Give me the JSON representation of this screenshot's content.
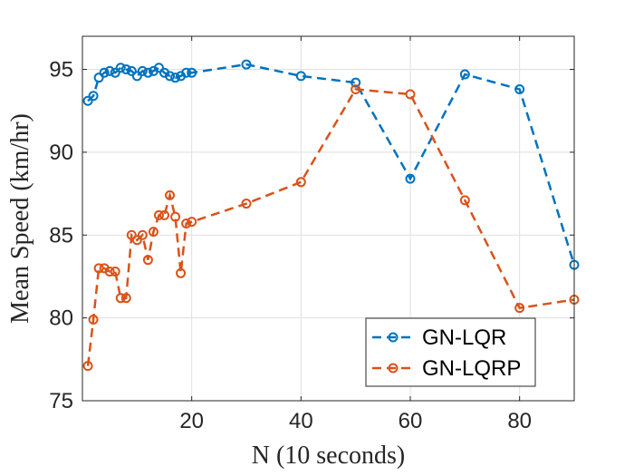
{
  "chart_data": {
    "type": "line",
    "title": "",
    "xlabel": "N (10 seconds)",
    "ylabel": "Mean Speed (km/hr)",
    "xlim": [
      0,
      90
    ],
    "ylim": [
      75,
      97
    ],
    "xticks": [
      20,
      40,
      60,
      80
    ],
    "yticks": [
      75,
      80,
      85,
      90,
      95
    ],
    "xtick_labels": [
      "20",
      "40",
      "60",
      "80"
    ],
    "ytick_labels": [
      "75",
      "80",
      "85",
      "90",
      "95"
    ],
    "grid": true,
    "legend_position": "bottom-right",
    "series": [
      {
        "name": "GN-LQR",
        "color": "#0072BD",
        "x": [
          1,
          2,
          3,
          4,
          5,
          6,
          7,
          8,
          9,
          10,
          11,
          12,
          13,
          14,
          15,
          16,
          17,
          18,
          19,
          20,
          30,
          40,
          50,
          60,
          70,
          80,
          90
        ],
        "y": [
          93.1,
          93.4,
          94.5,
          94.8,
          94.9,
          94.8,
          95.1,
          95.0,
          94.9,
          94.6,
          94.9,
          94.8,
          94.9,
          95.1,
          94.8,
          94.6,
          94.5,
          94.6,
          94.8,
          94.8,
          95.3,
          94.6,
          94.2,
          88.4,
          94.7,
          93.8,
          83.2
        ]
      },
      {
        "name": "GN-LQRP",
        "color": "#D95319",
        "x": [
          1,
          2,
          3,
          4,
          5,
          6,
          7,
          8,
          9,
          10,
          11,
          12,
          13,
          14,
          15,
          16,
          17,
          18,
          19,
          20,
          30,
          40,
          50,
          60,
          70,
          80,
          90
        ],
        "y": [
          77.1,
          79.9,
          83.0,
          83.0,
          82.8,
          82.8,
          81.2,
          81.2,
          85.0,
          84.7,
          85.0,
          83.5,
          85.2,
          86.2,
          86.2,
          87.4,
          86.1,
          82.7,
          85.7,
          85.8,
          86.9,
          88.2,
          93.8,
          93.5,
          87.1,
          80.6,
          81.1
        ]
      }
    ]
  }
}
